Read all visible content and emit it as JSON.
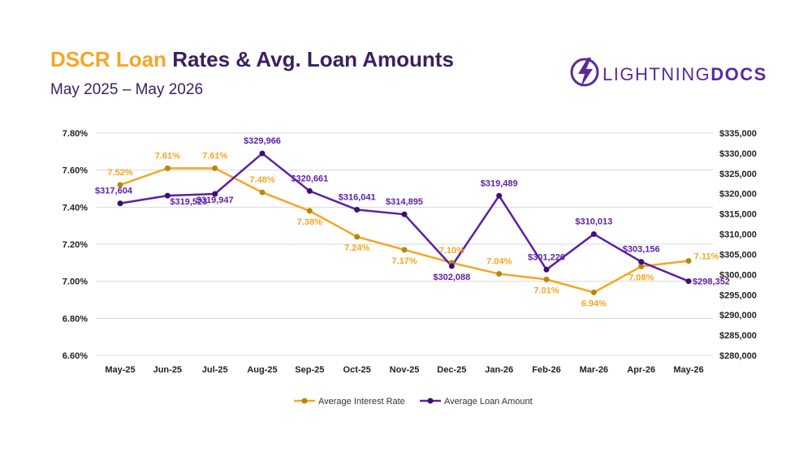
{
  "header": {
    "title_accent": "DSCR Loan",
    "title_rest": " Rates & Avg. Loan Amounts",
    "subtitle": "May 2025 – May 2026"
  },
  "logo": {
    "text_light": "LIGHTNING",
    "text_bold": "DOCS"
  },
  "colors": {
    "rate": "#f5a623",
    "amount": "#5b1fa8",
    "title": "#3b2060",
    "grid": "#d9d9d9"
  },
  "chart_data": {
    "type": "line",
    "title": "DSCR Loan Rates & Avg. Loan Amounts",
    "subtitle": "May 2025 – May 2026",
    "categories": [
      "May-25",
      "Jun-25",
      "Jul-25",
      "Aug-25",
      "Sep-25",
      "Oct-25",
      "Nov-25",
      "Dec-25",
      "Jan-26",
      "Feb-26",
      "Mar-26",
      "Apr-26",
      "May-26"
    ],
    "y_left": {
      "min": 6.6,
      "max": 7.8,
      "step": 0.2,
      "format": "percent",
      "ticks": [
        "7.80%",
        "7.60%",
        "7.40%",
        "7.20%",
        "7.00%",
        "6.80%",
        "6.60%"
      ]
    },
    "y_right": {
      "min": 280000,
      "max": 335000,
      "step": 5000,
      "format": "currency",
      "ticks": [
        "$335,000",
        "$330,000",
        "$325,000",
        "$320,000",
        "$315,000",
        "$310,000",
        "$305,000",
        "$300,000",
        "$295,000",
        "$290,000",
        "$285,000",
        "$280,000"
      ]
    },
    "grid": true,
    "legend_position": "bottom",
    "series": [
      {
        "name": "Average Interest Rate",
        "axis": "left",
        "values": [
          7.52,
          7.61,
          7.61,
          7.48,
          7.38,
          7.24,
          7.17,
          7.1,
          7.04,
          7.01,
          6.94,
          7.08,
          7.11
        ],
        "labels": [
          "7.52%",
          "7.61%",
          "7.61%",
          "7.48%",
          "7.38%",
          "7.24%",
          "7.17%",
          "7.10%",
          "7.04%",
          "7.01%",
          "6.94%",
          "7.08%",
          "7.11%"
        ]
      },
      {
        "name": "Average Loan Amount",
        "axis": "right",
        "values": [
          317604,
          319523,
          319947,
          329966,
          320661,
          316041,
          314895,
          302088,
          319489,
          301226,
          310013,
          303156,
          298352
        ],
        "labels": [
          "$317,604",
          "$319,523",
          "$319,947",
          "$329,966",
          "$320,661",
          "$316,041",
          "$314,895",
          "$302,088",
          "$319,489",
          "$301,226",
          "$310,013",
          "$303,156",
          "$298,352"
        ]
      }
    ]
  }
}
